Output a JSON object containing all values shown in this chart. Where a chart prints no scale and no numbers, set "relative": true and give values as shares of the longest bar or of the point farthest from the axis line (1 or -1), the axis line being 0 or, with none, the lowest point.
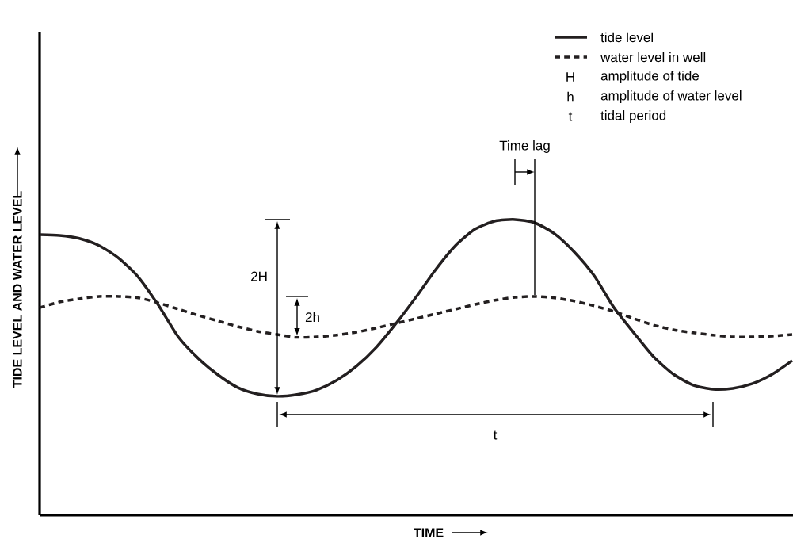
{
  "chart_data": {
    "type": "line",
    "relative": true,
    "xlabel": "TIME",
    "ylabel": "TIDE LEVEL AND WATER LEVEL",
    "legend": "top right",
    "categories": [
      null,
      null,
      null,
      null,
      null,
      null,
      null,
      null,
      null,
      null,
      null,
      null,
      null,
      null,
      null,
      null,
      null,
      null,
      null,
      null,
      null,
      null,
      null,
      null,
      null,
      null,
      null,
      null,
      null,
      null,
      null,
      null,
      null,
      null,
      null,
      null,
      null,
      null,
      null
    ],
    "series": [
      {
        "name": "tide level",
        "color": "#231f20",
        "line_style": "solid",
        "values": [
          0.949,
          0.946,
          0.936,
          0.912,
          0.869,
          0.804,
          0.71,
          0.603,
          0.531,
          0.475,
          0.432,
          0.41,
          0.402,
          0.408,
          0.424,
          0.456,
          0.504,
          0.568,
          0.649,
          0.737,
          0.831,
          0.912,
          0.968,
          0.995,
          1.0,
          0.989,
          0.952,
          0.89,
          0.81,
          0.702,
          0.617,
          0.536,
          0.477,
          0.44,
          0.426,
          0.429,
          0.445,
          0.477,
          0.523
        ]
      },
      {
        "name": "water level in well",
        "color": "#231f20",
        "line_style": "dashed",
        "values": [
          0.702,
          0.721,
          0.732,
          0.74,
          0.74,
          0.735,
          0.718,
          0.697,
          0.676,
          0.657,
          0.638,
          0.622,
          0.611,
          0.601,
          0.603,
          0.609,
          0.619,
          0.633,
          0.649,
          0.665,
          0.681,
          0.697,
          0.713,
          0.727,
          0.737,
          0.74,
          0.735,
          0.724,
          0.708,
          0.689,
          0.665,
          0.643,
          0.627,
          0.617,
          0.609,
          0.603,
          0.603,
          0.606,
          0.611
        ]
      }
    ],
    "annotations": [
      "2H",
      "2h",
      "Time lag",
      "t",
      "H",
      "amplitude of tide",
      "h",
      "amplitude of water level",
      "t",
      "tidal period"
    ]
  }
}
